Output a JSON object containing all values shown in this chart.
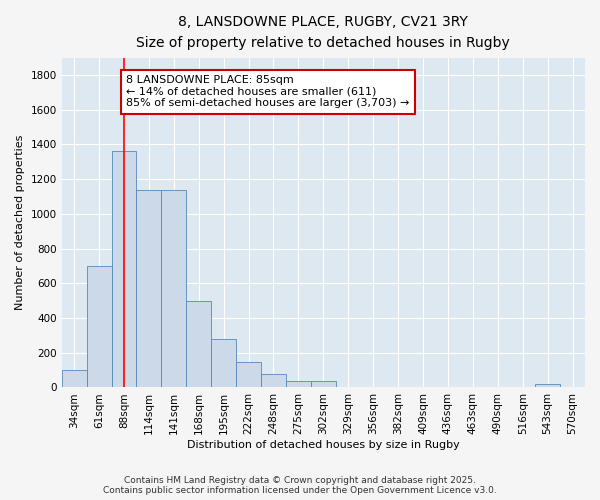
{
  "title_line1": "8, LANSDOWNE PLACE, RUGBY, CV21 3RY",
  "title_line2": "Size of property relative to detached houses in Rugby",
  "xlabel": "Distribution of detached houses by size in Rugby",
  "ylabel": "Number of detached properties",
  "bar_labels": [
    "34sqm",
    "61sqm",
    "88sqm",
    "114sqm",
    "141sqm",
    "168sqm",
    "195sqm",
    "222sqm",
    "248sqm",
    "275sqm",
    "302sqm",
    "329sqm",
    "356sqm",
    "382sqm",
    "409sqm",
    "436sqm",
    "463sqm",
    "490sqm",
    "516sqm",
    "543sqm",
    "570sqm"
  ],
  "bar_values": [
    100,
    700,
    1360,
    1135,
    1135,
    500,
    280,
    145,
    75,
    35,
    35,
    0,
    0,
    0,
    0,
    0,
    0,
    0,
    0,
    20,
    0
  ],
  "bar_color": "#ccd9e8",
  "bar_edge_color": "#5588bb",
  "red_line_x": 2,
  "annotation_text": "8 LANSDOWNE PLACE: 85sqm\n← 14% of detached houses are smaller (611)\n85% of semi-detached houses are larger (3,703) →",
  "annotation_box_color": "#ffffff",
  "annotation_border_color": "#cc0000",
  "ylim": [
    0,
    1900
  ],
  "yticks": [
    0,
    200,
    400,
    600,
    800,
    1000,
    1200,
    1400,
    1600,
    1800
  ],
  "fig_bg_color": "#f5f5f5",
  "plot_bg_color": "#dde8f0",
  "grid_color": "#ffffff",
  "footer_line1": "Contains HM Land Registry data © Crown copyright and database right 2025.",
  "footer_line2": "Contains public sector information licensed under the Open Government Licence v3.0.",
  "title_fontsize": 10,
  "subtitle_fontsize": 9,
  "annot_fontsize": 8,
  "label_fontsize": 8,
  "tick_fontsize": 7.5,
  "footer_fontsize": 6.5
}
